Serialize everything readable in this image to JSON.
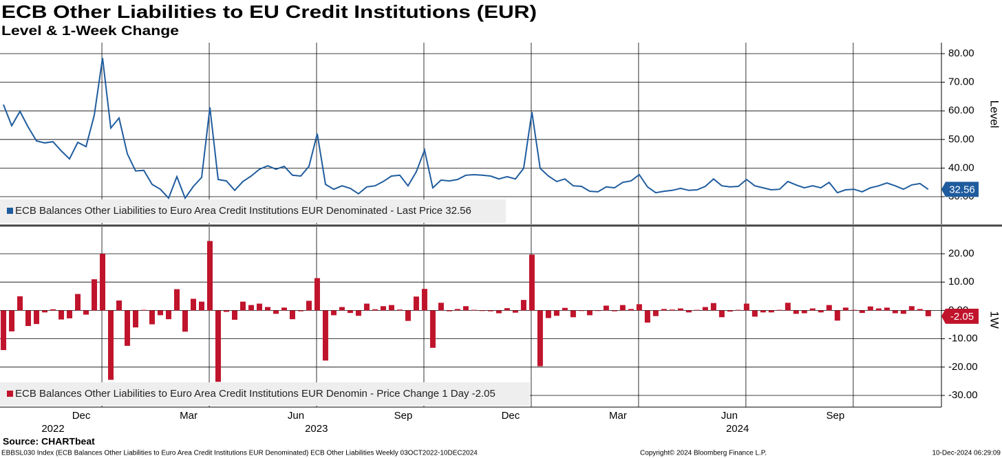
{
  "title": "ECB Other Liabilities to EU Credit Institutions (EUR)",
  "subtitle": "Level & 1-Week Change",
  "footer": {
    "source": "Source: CHARTbeat",
    "left": "EBBSL030 Index (ECB Balances Other Liabilities to Euro Area Credit Institutions EUR Denominated) ECB Other Liabilities  Weekly 03OCT2022-10DEC2024",
    "center": "Copyright© 2024 Bloomberg Finance L.P.",
    "right": "10-Dec-2024 06:29:09"
  },
  "chart_data": [
    {
      "type": "line",
      "ylabel": "Level",
      "ylim": [
        20.38,
        83.85
      ],
      "yticks": [
        {
          "value": 30,
          "label": "30.00"
        },
        {
          "value": 40,
          "label": "40.00"
        },
        {
          "value": 50,
          "label": "50.00"
        },
        {
          "value": 60,
          "label": "60.00"
        },
        {
          "value": 70,
          "label": "70.00"
        },
        {
          "value": 80,
          "label": "80.00"
        }
      ],
      "xlim": [
        -0.42,
        113.6
      ],
      "xgrid": [
        11.92,
        24.92,
        37.92,
        50.92,
        63.92,
        76.92,
        89.92,
        102.92
      ],
      "grid": true,
      "series": [
        {
          "name": "ECB Balances Other Liabilities to Euro Area Credit Institutions EUR Denominated - Last Price 32.56",
          "color": "#1f5c9e",
          "values": [
            62.2,
            54.8,
            59.8,
            54.3,
            49.5,
            48.8,
            49.2,
            46,
            43.2,
            49,
            47.5,
            58.5,
            78.5,
            54,
            57.5,
            45,
            39,
            39.2,
            34.3,
            32.6,
            29.5,
            37,
            29.5,
            33.6,
            36.7,
            61.2,
            36,
            35.5,
            32.2,
            35.3,
            37.2,
            39.6,
            40.8,
            39.6,
            40.6,
            37.5,
            37.2,
            40.6,
            52,
            34.3,
            32.6,
            33.8,
            32.9,
            31,
            33.4,
            33.8,
            35.3,
            37.2,
            37.5,
            33.8,
            38.7,
            46.3,
            33.1,
            35.8,
            35.5,
            36,
            37.5,
            37.7,
            37.5,
            37.2,
            36.2,
            37,
            36.2,
            39.9,
            59.6,
            39.9,
            37.2,
            35.3,
            36.2,
            33.8,
            33.6,
            31.9,
            31.7,
            33.4,
            33.1,
            35,
            35.5,
            37.7,
            33.4,
            31.4,
            31.9,
            32.2,
            32.9,
            32.2,
            32.4,
            33.6,
            36.2,
            33.8,
            33.4,
            33.6,
            36,
            33.8,
            33.1,
            32.4,
            32.6,
            35.3,
            34.1,
            33.1,
            33.8,
            33.1,
            35,
            31.4,
            32.4,
            32.6,
            31.7,
            33.1,
            33.8,
            34.8,
            33.8,
            32.6,
            34.1,
            34.6,
            32.56
          ]
        }
      ]
    },
    {
      "type": "bar",
      "ylabel": "1W",
      "ylim": [
        -34.13,
        29.47
      ],
      "yticks": [
        {
          "value": -30,
          "label": "-30.00"
        },
        {
          "value": -20,
          "label": "-20.00"
        },
        {
          "value": -10,
          "label": "-10.00"
        },
        {
          "value": 0,
          "label": "0.00"
        },
        {
          "value": 10,
          "label": "10.00"
        },
        {
          "value": 20,
          "label": "20.00"
        }
      ],
      "xlim": [
        -0.42,
        113.6
      ],
      "xgrid": [
        11.92,
        24.92,
        37.92,
        50.92,
        63.92,
        76.92,
        89.92,
        102.92
      ],
      "grid": true,
      "xticks": [
        {
          "value": 9.42,
          "label": "Dec"
        },
        {
          "value": 22.42,
          "label": "Mar"
        },
        {
          "value": 35.42,
          "label": "Jun"
        },
        {
          "value": 48.42,
          "label": "Sep"
        },
        {
          "value": 61.42,
          "label": "Dec"
        },
        {
          "value": 74.42,
          "label": "Mar"
        },
        {
          "value": 87.92,
          "label": "Jun"
        },
        {
          "value": 100.75,
          "label": "Sep"
        }
      ],
      "year_ticks": [
        {
          "value": 6,
          "label": "2022"
        },
        {
          "value": 37.9,
          "label": "2023"
        },
        {
          "value": 88.9,
          "label": "2024"
        }
      ],
      "series": [
        {
          "name": "ECB Balances Other Liabilities to Euro Area Credit Institutions EUR Denomin - Price Change 1 Day -2.05",
          "color": "#c0142c",
          "values": [
            -14,
            -7.4,
            5,
            -5.5,
            -4.8,
            -0.7,
            0.4,
            -3.2,
            -2.8,
            5.8,
            -1.5,
            11,
            20,
            -24.5,
            3.5,
            -12.5,
            -6,
            0.2,
            -4.9,
            -1.7,
            -3.1,
            7.5,
            -7.5,
            4.1,
            3.1,
            24.5,
            -25.2,
            -0.5,
            -3.3,
            3.1,
            1.9,
            2.4,
            1.2,
            -1.2,
            1,
            -3.1,
            -0.3,
            3.4,
            11.4,
            -17.7,
            -1.7,
            1.2,
            -0.9,
            -1.9,
            2.4,
            0.4,
            1.5,
            1.9,
            0.3,
            -3.7,
            4.9,
            7.6,
            -13.2,
            2.7,
            -0.3,
            0.5,
            1.5,
            0.2,
            -0.2,
            -0.3,
            -1,
            0.8,
            -0.8,
            3.7,
            19.7,
            -19.7,
            -2.7,
            -1.9,
            0.9,
            -2.4,
            -0.2,
            -1.7,
            -0.2,
            1.7,
            -0.3,
            1.9,
            0.5,
            2.2,
            -4.3,
            -2,
            0.5,
            0.3,
            0.7,
            -0.7,
            0.2,
            1.2,
            2.6,
            -2.4,
            -0.4,
            0.2,
            2.4,
            -2.2,
            -0.7,
            -0.7,
            0.2,
            2.7,
            -1.2,
            -1,
            0.7,
            -0.7,
            1.9,
            -3.6,
            1,
            0.2,
            -0.9,
            1.4,
            0.7,
            1,
            -1,
            -1.2,
            1.5,
            0.5,
            -2.05
          ]
        }
      ]
    }
  ]
}
